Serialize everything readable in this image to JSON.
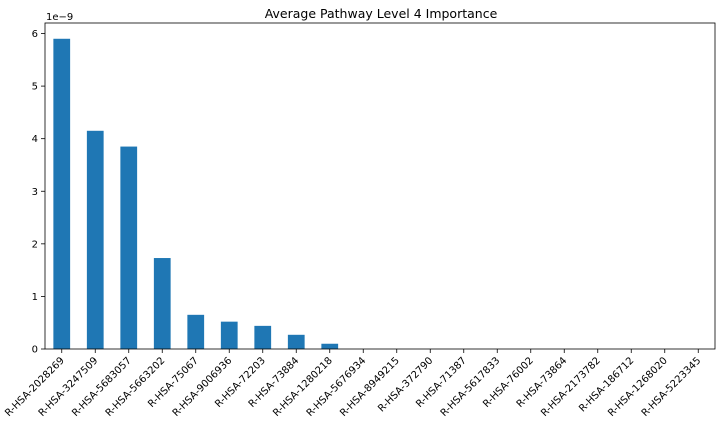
{
  "chart_data": {
    "type": "bar",
    "title": "Average Pathway Level 4 Importance",
    "xlabel": "",
    "ylabel": "",
    "y_offset_label": "1e−9",
    "y_scale": 1e-09,
    "ylim": [
      0,
      6.2
    ],
    "yticks": [
      0,
      1,
      2,
      3,
      4,
      5,
      6
    ],
    "color": "#1f77b4",
    "grid": false,
    "categories": [
      "R-HSA-2028269",
      "R-HSA-3247509",
      "R-HSA-5683057",
      "R-HSA-5663202",
      "R-HSA-75067",
      "R-HSA-9006936",
      "R-HSA-72203",
      "R-HSA-73884",
      "R-HSA-1280218",
      "R-HSA-5676934",
      "R-HSA-8949215",
      "R-HSA-372790",
      "R-HSA-71387",
      "R-HSA-5617833",
      "R-HSA-76002",
      "R-HSA-73864",
      "R-HSA-2173782",
      "R-HSA-186712",
      "R-HSA-1268020",
      "R-HSA-5223345"
    ],
    "values": [
      5.9,
      4.15,
      3.85,
      1.73,
      0.65,
      0.52,
      0.44,
      0.27,
      0.1,
      0,
      0,
      0,
      0,
      0,
      0,
      0,
      0,
      0,
      0,
      0
    ]
  }
}
